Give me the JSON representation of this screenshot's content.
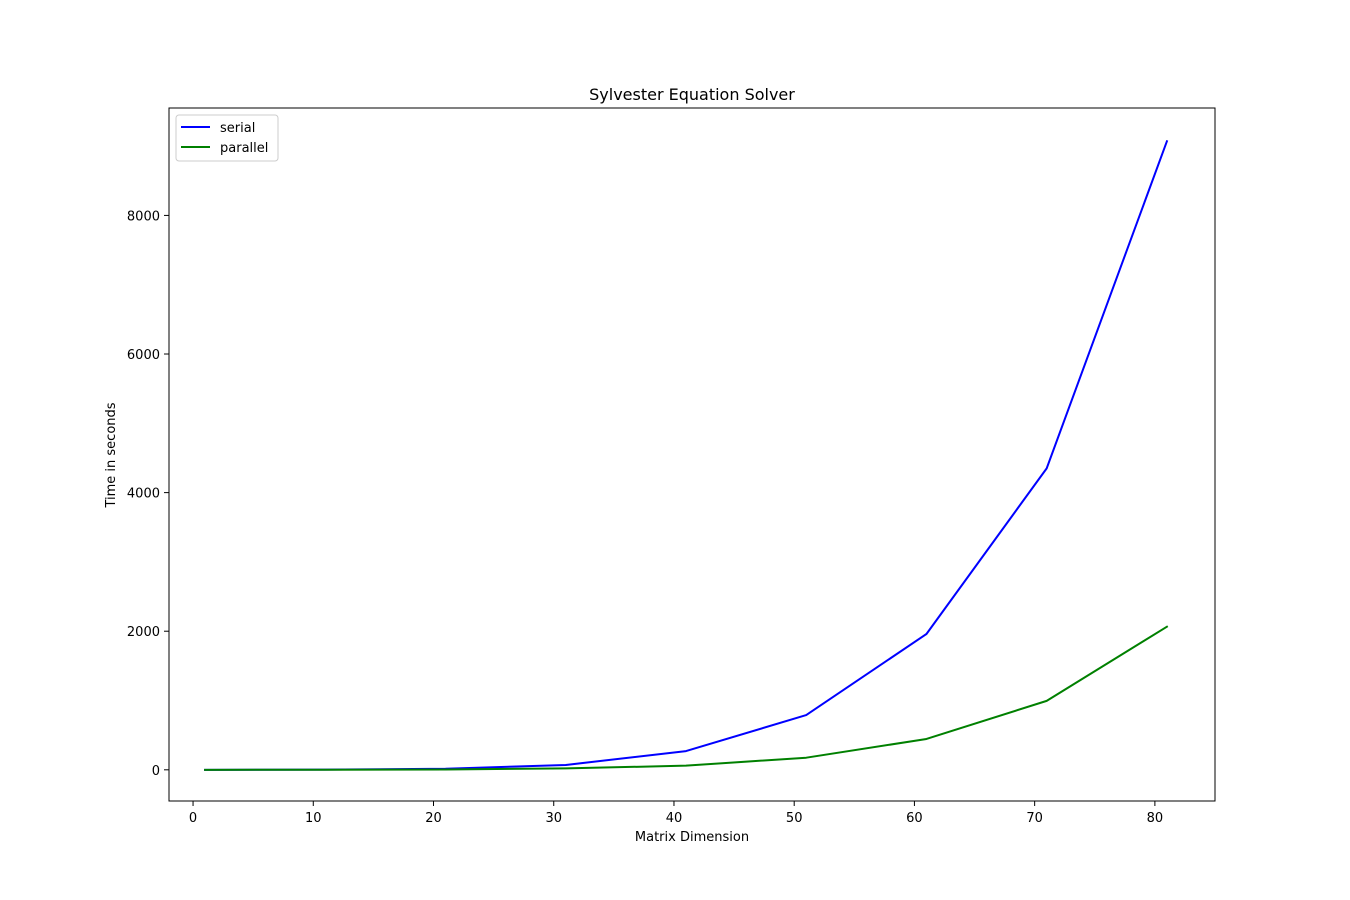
{
  "chart_data": {
    "type": "line",
    "title": "Sylvester Equation Solver",
    "xlabel": "Matrix Dimension",
    "ylabel": "Time in seconds",
    "x": [
      1,
      11,
      21,
      31,
      41,
      51,
      61,
      71,
      81
    ],
    "series": [
      {
        "name": "serial",
        "color": "#0000ff",
        "values": [
          0,
          2,
          15,
          70,
          270,
          790,
          1960,
          4350,
          9070
        ]
      },
      {
        "name": "parallel",
        "color": "#008000",
        "values": [
          0,
          1,
          5,
          20,
          60,
          175,
          445,
          995,
          2065
        ]
      }
    ],
    "xlim": [
      -2,
      85
    ],
    "ylim": [
      -450,
      9550
    ],
    "xticks": [
      0,
      10,
      20,
      30,
      40,
      50,
      60,
      70,
      80
    ],
    "yticks": [
      0,
      2000,
      4000,
      6000,
      8000
    ],
    "legend": "upper left",
    "grid": false
  }
}
